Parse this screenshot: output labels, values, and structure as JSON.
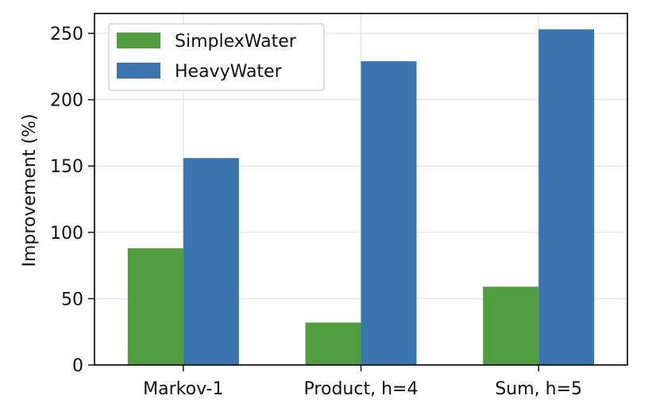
{
  "chart_data": {
    "type": "bar",
    "title": "",
    "xlabel": "",
    "ylabel": "Improvement (%)",
    "categories": [
      "Markov-1",
      "Product, h=4",
      "Sum, h=5"
    ],
    "series": [
      {
        "name": "SimplexWater",
        "color": "#519e3e",
        "values": [
          88,
          32,
          59
        ]
      },
      {
        "name": "HeavyWater",
        "color": "#3a75af",
        "values": [
          156,
          229,
          253
        ]
      }
    ],
    "ylim": [
      0,
      265
    ],
    "yticks": [
      "0",
      "50",
      "100",
      "150",
      "200",
      "250"
    ],
    "grid": true,
    "legend_position": "top-left"
  }
}
